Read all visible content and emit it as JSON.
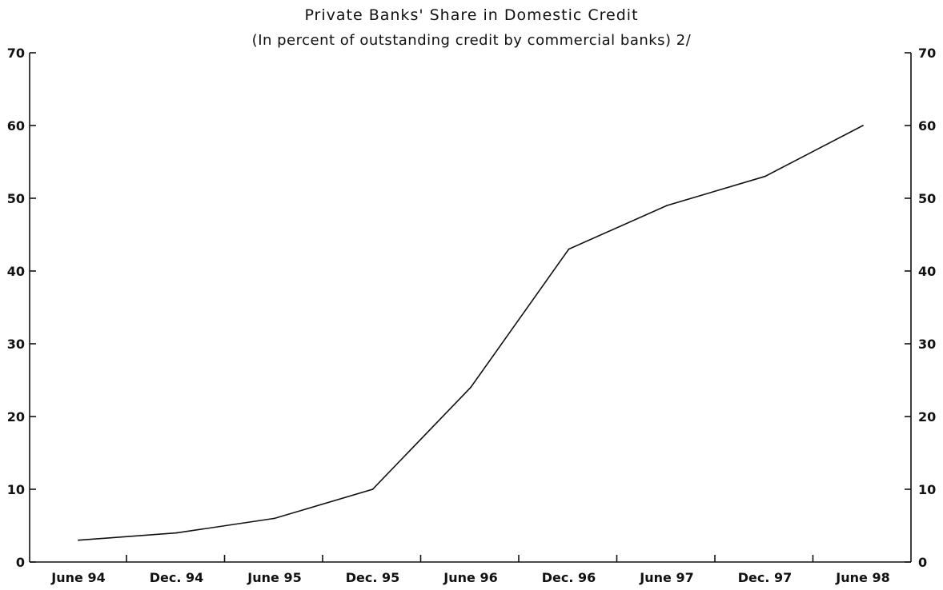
{
  "chart_data": {
    "type": "line",
    "title": "Private Banks' Share in Domestic Credit",
    "subtitle": "(In percent of outstanding credit by commercial banks) 2/",
    "xlabel": "",
    "ylabel": "",
    "categories": [
      "June 94",
      "Dec. 94",
      "June 95",
      "Dec. 95",
      "June 96",
      "Dec. 96",
      "June 97",
      "Dec. 97",
      "June 98"
    ],
    "series": [
      {
        "values": [
          3.0,
          4.0,
          6.0,
          10.0,
          24.0,
          43.0,
          49.0,
          53.0,
          60.0
        ]
      }
    ],
    "ylim": [
      0,
      70
    ],
    "yticks": [
      0,
      10,
      20,
      30,
      40,
      50,
      60,
      70
    ],
    "grid": false,
    "right_axis": true,
    "colors": {
      "line": "#111111",
      "axis": "#111111",
      "background": "#ffffff"
    }
  }
}
